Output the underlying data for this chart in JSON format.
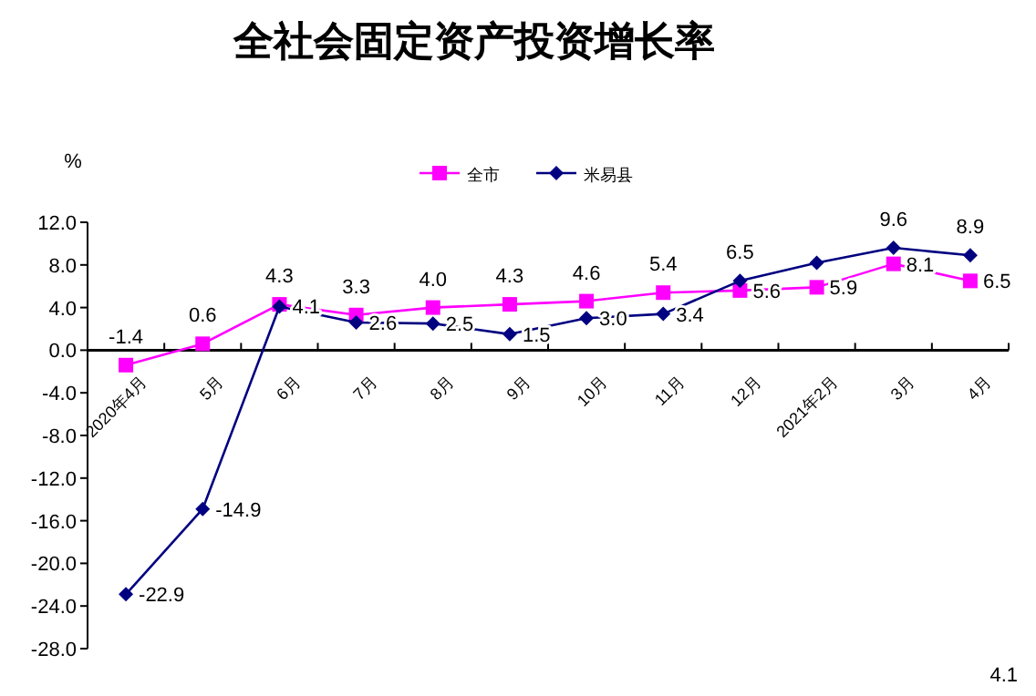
{
  "chart_data": {
    "type": "line",
    "title": "全社会固定资产投资增长率",
    "ylabel": "%",
    "categories": [
      "2020年4月",
      "5月",
      "6月",
      "7月",
      "8月",
      "9月",
      "10月",
      "11月",
      "12月",
      "2021年2月",
      "3月",
      "4月"
    ],
    "series": [
      {
        "name": "全市",
        "color": "#ff00ff",
        "marker": "square",
        "values": [
          -1.4,
          0.6,
          4.3,
          3.3,
          4.0,
          4.3,
          4.6,
          5.4,
          5.6,
          5.9,
          8.1,
          6.5
        ],
        "value_labels": [
          "-1.4",
          "0.6",
          "4.3",
          "3.3",
          "4.0",
          "4.3",
          "4.6",
          "5.4",
          "5.6",
          "5.9",
          "8.1",
          "6.5"
        ]
      },
      {
        "name": "米易县",
        "color": "#000080",
        "marker": "diamond",
        "values": [
          -22.9,
          -14.9,
          4.1,
          2.6,
          2.5,
          1.5,
          3.0,
          3.4,
          6.5,
          8.2,
          9.6,
          8.9
        ],
        "value_labels": [
          "-22.9",
          "-14.9",
          "4.1",
          "2.6",
          "2.5",
          "1.5",
          "3.0",
          "3.4",
          "6.5",
          null,
          "9.6",
          "8.9"
        ]
      }
    ],
    "annotations": [
      "4.1"
    ],
    "ylim": [
      -28,
      12
    ],
    "yticks": [
      {
        "value": 12,
        "label": "12.0"
      },
      {
        "value": 8,
        "label": "8.0"
      },
      {
        "value": 4,
        "label": "4.0"
      },
      {
        "value": 0,
        "label": "0.0"
      },
      {
        "value": -4,
        "label": "-4.0"
      },
      {
        "value": -8,
        "label": "-8.0"
      },
      {
        "value": -12,
        "label": "-12.0"
      },
      {
        "value": -16,
        "label": "-16.0"
      },
      {
        "value": -20,
        "label": "-20.0"
      },
      {
        "value": -24,
        "label": "-24.0"
      },
      {
        "value": -28,
        "label": "-28.0"
      }
    ],
    "legend": "top",
    "grid": false
  }
}
